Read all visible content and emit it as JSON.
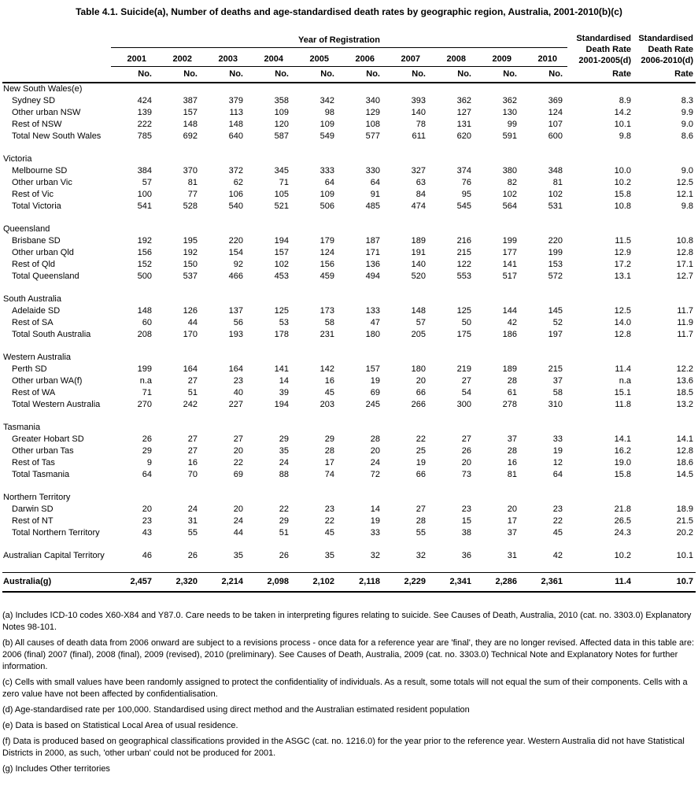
{
  "title": "Table 4.1. Suicide(a), Number of deaths and age-standardised death rates by geographic region, Australia, 2001-2010(b)(c)",
  "table": {
    "year_group_label": "Year of Registration",
    "years": [
      "2001",
      "2002",
      "2003",
      "2004",
      "2005",
      "2006",
      "2007",
      "2008",
      "2009",
      "2010"
    ],
    "unit_no": "No.",
    "unit_rate": "Rate",
    "rate_head_1": [
      "Standardised",
      "Death Rate",
      "2001-2005(d)"
    ],
    "rate_head_2": [
      "Standardised",
      "Death Rate",
      "2006-2010(d)"
    ],
    "sections": [
      {
        "header": "New South Wales(e)",
        "rows": [
          {
            "label": "Sydney SD",
            "indent": true,
            "values": [
              "424",
              "387",
              "379",
              "358",
              "342",
              "340",
              "393",
              "362",
              "362",
              "369",
              "8.9",
              "8.3"
            ]
          },
          {
            "label": "Other urban NSW",
            "indent": true,
            "values": [
              "139",
              "157",
              "113",
              "109",
              "98",
              "129",
              "140",
              "127",
              "130",
              "124",
              "14.2",
              "9.9"
            ]
          },
          {
            "label": "Rest of NSW",
            "indent": true,
            "values": [
              "222",
              "148",
              "148",
              "120",
              "109",
              "108",
              "78",
              "131",
              "99",
              "107",
              "10.1",
              "9.0"
            ]
          },
          {
            "label": "Total New South Wales",
            "indent": true,
            "values": [
              "785",
              "692",
              "640",
              "587",
              "549",
              "577",
              "611",
              "620",
              "591",
              "600",
              "9.8",
              "8.6"
            ]
          }
        ]
      },
      {
        "header": "Victoria",
        "rows": [
          {
            "label": "Melbourne SD",
            "indent": true,
            "values": [
              "384",
              "370",
              "372",
              "345",
              "333",
              "330",
              "327",
              "374",
              "380",
              "348",
              "10.0",
              "9.0"
            ]
          },
          {
            "label": "Other urban Vic",
            "indent": true,
            "values": [
              "57",
              "81",
              "62",
              "71",
              "64",
              "64",
              "63",
              "76",
              "82",
              "81",
              "10.2",
              "12.5"
            ]
          },
          {
            "label": "Rest of Vic",
            "indent": true,
            "values": [
              "100",
              "77",
              "106",
              "105",
              "109",
              "91",
              "84",
              "95",
              "102",
              "102",
              "15.8",
              "12.1"
            ]
          },
          {
            "label": "Total Victoria",
            "indent": true,
            "values": [
              "541",
              "528",
              "540",
              "521",
              "506",
              "485",
              "474",
              "545",
              "564",
              "531",
              "10.8",
              "9.8"
            ]
          }
        ]
      },
      {
        "header": "Queensland",
        "rows": [
          {
            "label": "Brisbane SD",
            "indent": true,
            "values": [
              "192",
              "195",
              "220",
              "194",
              "179",
              "187",
              "189",
              "216",
              "199",
              "220",
              "11.5",
              "10.8"
            ]
          },
          {
            "label": "Other urban Qld",
            "indent": true,
            "values": [
              "156",
              "192",
              "154",
              "157",
              "124",
              "171",
              "191",
              "215",
              "177",
              "199",
              "12.9",
              "12.8"
            ]
          },
          {
            "label": "Rest of Qld",
            "indent": true,
            "values": [
              "152",
              "150",
              "92",
              "102",
              "156",
              "136",
              "140",
              "122",
              "141",
              "153",
              "17.2",
              "17.1"
            ]
          },
          {
            "label": "Total Queensland",
            "indent": true,
            "values": [
              "500",
              "537",
              "466",
              "453",
              "459",
              "494",
              "520",
              "553",
              "517",
              "572",
              "13.1",
              "12.7"
            ]
          }
        ]
      },
      {
        "header": "South Australia",
        "rows": [
          {
            "label": "Adelaide SD",
            "indent": true,
            "values": [
              "148",
              "126",
              "137",
              "125",
              "173",
              "133",
              "148",
              "125",
              "144",
              "145",
              "12.5",
              "11.7"
            ]
          },
          {
            "label": "Rest of SA",
            "indent": true,
            "values": [
              "60",
              "44",
              "56",
              "53",
              "58",
              "47",
              "57",
              "50",
              "42",
              "52",
              "14.0",
              "11.9"
            ]
          },
          {
            "label": "Total South Australia",
            "indent": true,
            "values": [
              "208",
              "170",
              "193",
              "178",
              "231",
              "180",
              "205",
              "175",
              "186",
              "197",
              "12.8",
              "11.7"
            ]
          }
        ]
      },
      {
        "header": "Western Australia",
        "rows": [
          {
            "label": "Perth SD",
            "indent": true,
            "values": [
              "199",
              "164",
              "164",
              "141",
              "142",
              "157",
              "180",
              "219",
              "189",
              "215",
              "11.4",
              "12.2"
            ]
          },
          {
            "label": "Other urban WA(f)",
            "indent": true,
            "values": [
              "n.a",
              "27",
              "23",
              "14",
              "16",
              "19",
              "20",
              "27",
              "28",
              "37",
              "n.a",
              "13.6"
            ]
          },
          {
            "label": "Rest of WA",
            "indent": true,
            "values": [
              "71",
              "51",
              "40",
              "39",
              "45",
              "69",
              "66",
              "54",
              "61",
              "58",
              "15.1",
              "18.5"
            ]
          },
          {
            "label": "Total Western Australia",
            "indent": true,
            "values": [
              "270",
              "242",
              "227",
              "194",
              "203",
              "245",
              "266",
              "300",
              "278",
              "310",
              "11.8",
              "13.2"
            ]
          }
        ]
      },
      {
        "header": "Tasmania",
        "rows": [
          {
            "label": "Greater Hobart SD",
            "indent": true,
            "values": [
              "26",
              "27",
              "27",
              "29",
              "29",
              "28",
              "22",
              "27",
              "37",
              "33",
              "14.1",
              "14.1"
            ]
          },
          {
            "label": "Other urban Tas",
            "indent": true,
            "values": [
              "29",
              "27",
              "20",
              "35",
              "28",
              "20",
              "25",
              "26",
              "28",
              "19",
              "16.2",
              "12.8"
            ]
          },
          {
            "label": "Rest of Tas",
            "indent": true,
            "values": [
              "9",
              "16",
              "22",
              "24",
              "17",
              "24",
              "19",
              "20",
              "16",
              "12",
              "19.0",
              "18.6"
            ]
          },
          {
            "label": "Total Tasmania",
            "indent": true,
            "values": [
              "64",
              "70",
              "69",
              "88",
              "74",
              "72",
              "66",
              "73",
              "81",
              "64",
              "15.8",
              "14.5"
            ]
          }
        ]
      },
      {
        "header": "Northern Territory",
        "rows": [
          {
            "label": "Darwin SD",
            "indent": true,
            "values": [
              "20",
              "24",
              "20",
              "22",
              "23",
              "14",
              "27",
              "23",
              "20",
              "23",
              "21.8",
              "18.9"
            ]
          },
          {
            "label": "Rest of NT",
            "indent": true,
            "values": [
              "23",
              "31",
              "24",
              "29",
              "22",
              "19",
              "28",
              "15",
              "17",
              "22",
              "26.5",
              "21.5"
            ]
          },
          {
            "label": "Total Northern Territory",
            "indent": true,
            "values": [
              "43",
              "55",
              "44",
              "51",
              "45",
              "33",
              "55",
              "38",
              "37",
              "45",
              "24.3",
              "20.2"
            ]
          }
        ]
      },
      {
        "header": null,
        "rows": [
          {
            "label": "Australian Capital Territory",
            "indent": false,
            "values": [
              "46",
              "26",
              "35",
              "26",
              "35",
              "32",
              "32",
              "36",
              "31",
              "42",
              "10.2",
              "10.1"
            ]
          }
        ]
      }
    ],
    "total_row": {
      "label": "Australia(g)",
      "values": [
        "2,457",
        "2,320",
        "2,214",
        "2,098",
        "2,102",
        "2,118",
        "2,229",
        "2,341",
        "2,286",
        "2,361",
        "11.4",
        "10.7"
      ]
    }
  },
  "footnotes": [
    "(a) Includes ICD-10 codes X60-X84 and Y87.0. Care needs to be taken in interpreting figures relating to suicide. See Causes of Death, Australia, 2010 (cat. no. 3303.0) Explanatory Notes 98-101.",
    "(b) All causes of death data from 2006 onward are subject to a revisions process - once data for a reference year are 'final', they are no longer revised. Affected data in this table are: 2006 (final) 2007 (final), 2008 (final), 2009 (revised), 2010 (preliminary). See Causes of Death, Australia, 2009 (cat. no. 3303.0) Technical Note and Explanatory Notes for further information.",
    "(c) Cells with small values have been randomly assigned to protect the confidentiality of individuals. As a result, some totals will not equal the sum of their components. Cells with a zero value have not been affected by confidentialisation.",
    "(d) Age-standardised rate per 100,000. Standardised using direct method and the Australian estimated resident population",
    "(e) Data is based on Statistical Local Area of usual residence.",
    "(f) Data is produced based on geographical classifications provided in the ASGC (cat. no. 1216.0) for the year prior to the reference year. Western Australia did not have Statistical Districts in 2000, as such, 'other urban' could not be produced for 2001.",
    "(g) Includes Other territories"
  ]
}
